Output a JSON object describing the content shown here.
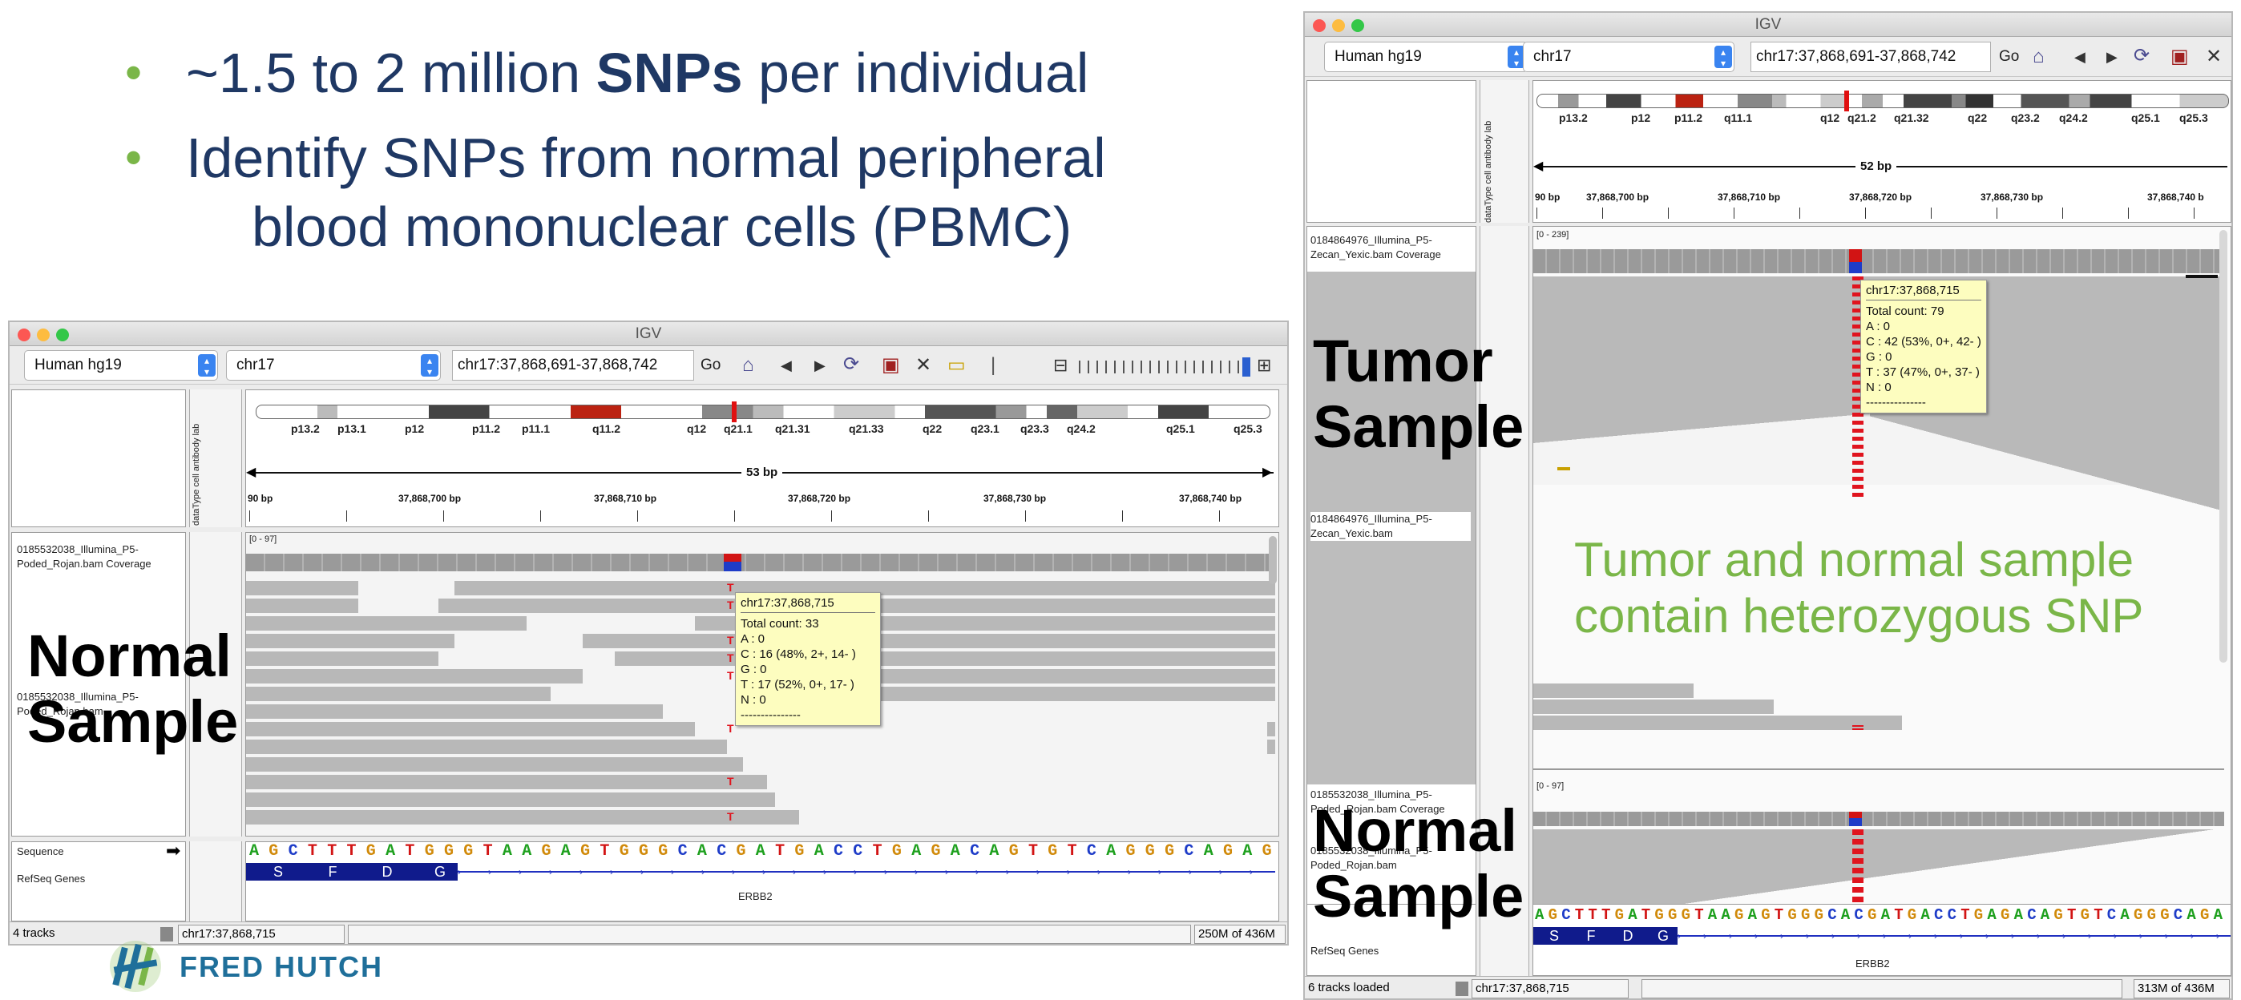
{
  "slide": {
    "bullet1": {
      "pre": "~1.5 to 2 million ",
      "bold": "SNPs",
      "post": " per individual"
    },
    "bullet2_line1": "Identify SNPs from normal peripheral",
    "bullet2_line2": "blood mononuclear cells (PBMC)",
    "logo_text": "FRED HUTCH",
    "colors": {
      "bullet_text": "#1f3864",
      "bullet_dot": "#7ab648",
      "note_green": "#7ab648"
    }
  },
  "left_igv": {
    "title": "IGV",
    "genome": "Human hg19",
    "chromosome": "chr17",
    "locus": "chr17:37,868,691-37,868,742",
    "go_label": "Go",
    "span": "53 bp",
    "scale_ticks": [
      "90 bp",
      "37,868,700 bp",
      "37,868,710 bp",
      "37,868,720 bp",
      "37,868,730 bp",
      "37,868,740 bp"
    ],
    "bands": [
      "p13.2",
      "p13.1",
      "p12",
      "p11.2",
      "p11.1",
      "q11.2",
      "q12",
      "q21.1",
      "q21.31",
      "q21.33",
      "q22",
      "q23.1",
      "q23.3",
      "q24.2",
      "q25.1",
      "q25.3"
    ],
    "attribute_headers": [
      "dataType",
      "cell",
      "antibody",
      "lab"
    ],
    "track_coverage_label": "0185532038_Illumina_P5-Poded_Rojan.bam Coverage",
    "track_bam_label": "0185532038_Illumina_P5-Poded_Rojan.bam",
    "coverage_range": "[0 - 97]",
    "popup": {
      "header": "chr17:37,868,715",
      "lines": [
        "Total count: 33",
        "A : 0",
        "C : 16 (48%, 2+, 14- )",
        "G : 0",
        "T : 17 (52%, 0+, 17- )",
        "N : 0",
        "---------------"
      ]
    },
    "snp_base": "T",
    "sequence_label": "Sequence",
    "sequence": "AGCTTTGATGGGTAAGAGTGGGCACGATGACCTGAGACAGTGTCAGGGCAGAG",
    "refseq_label": "RefSeq Genes",
    "exons": [
      "S",
      "F",
      "D",
      "G"
    ],
    "gene_name": "ERBB2",
    "status_tracks": "4 tracks",
    "status_locus": "chr17:37,868,715",
    "status_memory": "250M of 436M",
    "overlay_label_line1": "Normal",
    "overlay_label_line2": "Sample"
  },
  "right_igv": {
    "title": "IGV",
    "genome": "Human hg19",
    "chromosome": "chr17",
    "locus": "chr17:37,868,691-37,868,742",
    "go_label": "Go",
    "span": "52 bp",
    "scale_ticks": [
      "90 bp",
      "37,868,700 bp",
      "37,868,710 bp",
      "37,868,720 bp",
      "37,868,730 bp",
      "37,868,740 b"
    ],
    "bands": [
      "p13.2",
      "p12",
      "p11.2",
      "q11.1",
      "q12",
      "q21.2",
      "q21.32",
      "q22",
      "q23.2",
      "q24.2",
      "q25.1",
      "q25.3"
    ],
    "attribute_headers": [
      "dataType",
      "cell",
      "antibody",
      "lab"
    ],
    "tumor_coverage_label": "0184864976_Illumina_P5-Zecan_Yexic.bam Coverage",
    "tumor_bam_label": "0184864976_Illumina_P5-Zecan_Yexic.bam",
    "tumor_coverage_range": "[0 - 239]",
    "normal_coverage_label": "0185532038_Illumina_P5-Poded_Rojan.bam Coverage",
    "normal_bam_label": "0185532038_Illumina_P5-Poded_Rojan.bam",
    "normal_coverage_range": "[0 - 97]",
    "popup": {
      "header": "chr17:37,868,715",
      "lines": [
        "Total count: 79",
        "A : 0",
        "C : 42 (53%, 0+, 42- )",
        "G : 0",
        "T : 37 (47%, 0+, 37- )",
        "N : 0",
        "---------------"
      ]
    },
    "sequence": "AGCTTTGATGGGTAAGAGTGGGCACGATGACCTGAGACAGTGTCAGGGCAGA",
    "refseq_label": "RefSeq Genes",
    "exons": [
      "S",
      "F",
      "D",
      "G"
    ],
    "gene_name": "ERBB2",
    "status_tracks": "6 tracks loaded",
    "status_locus": "chr17:37,868,715",
    "status_memory": "313M of 436M",
    "tumor_label_line1": "Tumor",
    "tumor_label_line2": "Sample",
    "normal_label_line1": "Normal",
    "normal_label_line2": "Sample",
    "note_line1": "Tumor and normal sample",
    "note_line2": "contain heterozygous SNP"
  },
  "base_colors": {
    "A": "#1ea01e",
    "C": "#1e3cc8",
    "G": "#d18a0a",
    "T": "#d21414"
  }
}
